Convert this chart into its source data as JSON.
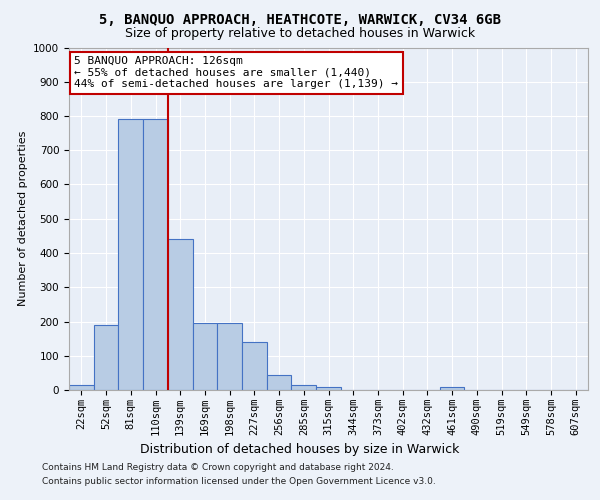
{
  "title1": "5, BANQUO APPROACH, HEATHCOTE, WARWICK, CV34 6GB",
  "title2": "Size of property relative to detached houses in Warwick",
  "xlabel": "Distribution of detached houses by size in Warwick",
  "ylabel": "Number of detached properties",
  "categories": [
    "22sqm",
    "52sqm",
    "81sqm",
    "110sqm",
    "139sqm",
    "169sqm",
    "198sqm",
    "227sqm",
    "256sqm",
    "285sqm",
    "315sqm",
    "344sqm",
    "373sqm",
    "402sqm",
    "432sqm",
    "461sqm",
    "490sqm",
    "519sqm",
    "549sqm",
    "578sqm",
    "607sqm"
  ],
  "values": [
    15,
    190,
    790,
    790,
    440,
    195,
    195,
    140,
    45,
    15,
    10,
    0,
    0,
    0,
    0,
    10,
    0,
    0,
    0,
    0,
    0
  ],
  "bar_color": "#b8cce4",
  "bar_edge_color": "#4472c4",
  "vline_x": 3.5,
  "vline_color": "#c00000",
  "annotation_line1": "5 BANQUO APPROACH: 126sqm",
  "annotation_line2": "← 55% of detached houses are smaller (1,440)",
  "annotation_line3": "44% of semi-detached houses are larger (1,139) →",
  "annotation_box_color": "#ffffff",
  "annotation_box_edge_color": "#c00000",
  "ylim": [
    0,
    1000
  ],
  "yticks": [
    0,
    100,
    200,
    300,
    400,
    500,
    600,
    700,
    800,
    900,
    1000
  ],
  "footer1": "Contains HM Land Registry data © Crown copyright and database right 2024.",
  "footer2": "Contains public sector information licensed under the Open Government Licence v3.0.",
  "bg_color": "#edf2f9",
  "plot_bg_color": "#e8eef7",
  "grid_color": "#ffffff",
  "title1_fontsize": 10,
  "title2_fontsize": 9,
  "xlabel_fontsize": 9,
  "ylabel_fontsize": 8,
  "tick_fontsize": 7.5,
  "annotation_fontsize": 8,
  "footer_fontsize": 6.5
}
